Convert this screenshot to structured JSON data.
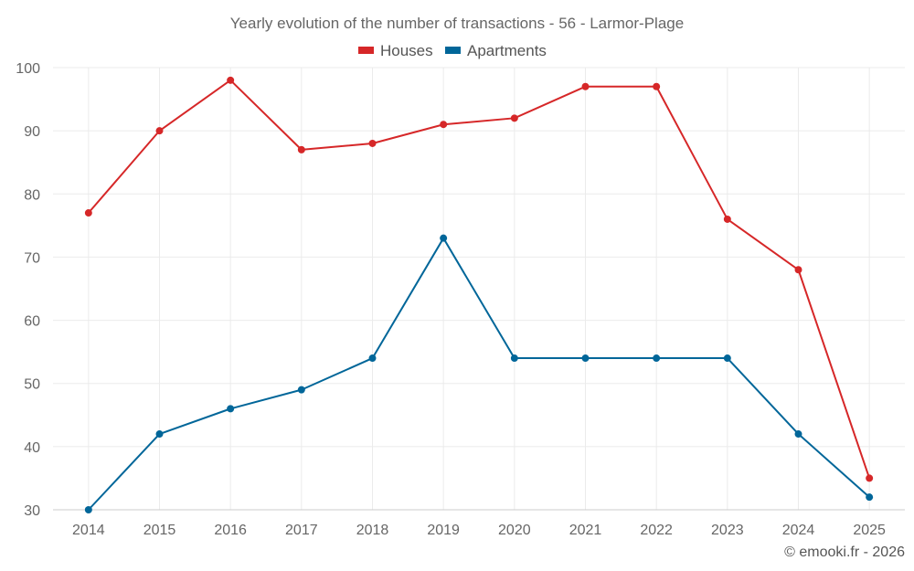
{
  "chart_data": {
    "type": "line",
    "title": "Yearly evolution of the number of transactions - 56 - Larmor-Plage",
    "categories": [
      "2014",
      "2015",
      "2016",
      "2017",
      "2018",
      "2019",
      "2020",
      "2021",
      "2022",
      "2023",
      "2024",
      "2025"
    ],
    "series": [
      {
        "name": "Houses",
        "color": "#d62728",
        "values": [
          77,
          90,
          98,
          87,
          88,
          91,
          92,
          97,
          97,
          76,
          68,
          35
        ]
      },
      {
        "name": "Apartments",
        "color": "#006699",
        "values": [
          30,
          42,
          46,
          49,
          54,
          73,
          54,
          54,
          54,
          54,
          42,
          32
        ]
      }
    ],
    "ylim": [
      30,
      100
    ],
    "yticks": [
      30,
      40,
      50,
      60,
      70,
      80,
      90,
      100
    ],
    "grid": true,
    "legend_position": "top-center",
    "xlabel": "",
    "ylabel": ""
  },
  "credit": "© emooki.fr - 2026"
}
